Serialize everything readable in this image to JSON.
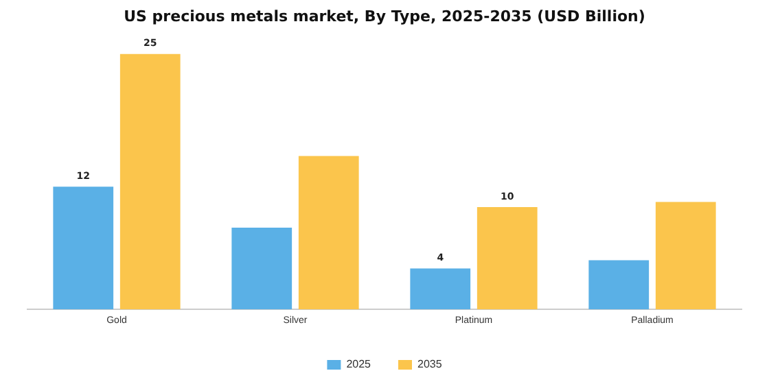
{
  "chart_data": {
    "type": "bar",
    "title": "US precious metals market, By Type, 2025-2035 (USD Billion)",
    "categories": [
      "Gold",
      "Silver",
      "Platinum",
      "Palladium"
    ],
    "series": [
      {
        "name": "2025",
        "color": "#5ab0e6",
        "values": [
          12,
          8,
          4,
          4.8
        ],
        "value_labels": [
          "12",
          null,
          "4",
          null
        ]
      },
      {
        "name": "2035",
        "color": "#fbc54c",
        "values": [
          25,
          15,
          10,
          10.5
        ],
        "value_labels": [
          "25",
          null,
          "10",
          null
        ]
      }
    ],
    "tick_labels": "x",
    "grid": false,
    "legend": "bottom"
  }
}
